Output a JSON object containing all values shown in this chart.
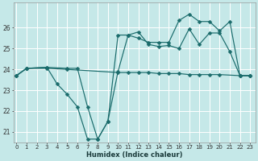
{
  "xlabel": "Humidex (Indice chaleur)",
  "background_color": "#c5e8e8",
  "grid_color": "#ffffff",
  "line_color": "#1a6b6b",
  "xlim_min": -0.3,
  "xlim_max": 23.5,
  "ylim_min": 20.5,
  "ylim_max": 27.2,
  "yticks": [
    21,
    22,
    23,
    24,
    25,
    26
  ],
  "xticks": [
    0,
    1,
    2,
    3,
    4,
    5,
    6,
    7,
    8,
    9,
    10,
    11,
    12,
    13,
    14,
    15,
    16,
    17,
    18,
    19,
    20,
    21,
    22,
    23
  ],
  "line1_x": [
    0,
    1,
    3,
    5,
    10,
    11,
    12,
    13,
    14,
    15,
    16,
    17,
    18,
    19,
    20,
    22,
    23
  ],
  "line1_y": [
    23.7,
    24.05,
    24.05,
    24.0,
    23.85,
    23.85,
    23.85,
    23.85,
    23.8,
    23.8,
    23.8,
    23.75,
    23.75,
    23.75,
    23.75,
    23.7,
    23.7
  ],
  "line2_x": [
    0,
    1,
    3,
    4,
    5,
    6,
    7,
    8,
    9,
    10,
    11,
    12,
    13,
    14,
    15,
    16,
    17,
    18,
    19,
    20,
    21,
    22,
    23
  ],
  "line2_y": [
    23.7,
    24.05,
    24.1,
    23.3,
    22.8,
    22.2,
    20.65,
    20.65,
    21.5,
    23.9,
    25.65,
    25.8,
    25.2,
    25.1,
    25.15,
    25.0,
    25.95,
    25.2,
    25.75,
    25.75,
    24.85,
    23.7,
    23.7
  ],
  "line3_x": [
    0,
    1,
    3,
    5,
    6,
    7,
    8,
    9,
    10,
    11,
    12,
    13,
    14,
    15,
    16,
    17,
    18,
    19,
    20,
    21,
    22,
    23
  ],
  "line3_y": [
    23.7,
    24.05,
    24.1,
    24.05,
    24.05,
    22.2,
    20.65,
    21.5,
    25.65,
    25.65,
    25.5,
    25.3,
    25.3,
    25.3,
    26.35,
    26.65,
    26.3,
    26.3,
    25.85,
    26.3,
    23.7,
    23.7
  ]
}
